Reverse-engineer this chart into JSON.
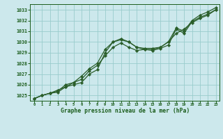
{
  "x": [
    0,
    1,
    2,
    3,
    4,
    5,
    6,
    7,
    8,
    9,
    10,
    11,
    12,
    13,
    14,
    15,
    16,
    17,
    18,
    19,
    20,
    21,
    22,
    23
  ],
  "series1": [
    1024.7,
    1025.0,
    1025.2,
    1025.4,
    1026.0,
    1026.2,
    1026.8,
    1027.5,
    1028.0,
    1029.3,
    1030.0,
    1030.3,
    1030.0,
    1029.5,
    1029.4,
    1029.4,
    1029.5,
    1030.0,
    1031.3,
    1031.0,
    1032.0,
    1032.5,
    1032.8,
    1033.2
  ],
  "series2": [
    1024.7,
    1025.0,
    1025.2,
    1025.5,
    1025.8,
    1026.2,
    1026.5,
    1027.3,
    1027.8,
    1028.7,
    1029.5,
    1029.9,
    1029.5,
    1029.2,
    1029.3,
    1029.3,
    1029.5,
    1030.0,
    1030.8,
    1031.2,
    1031.8,
    1032.2,
    1032.5,
    1033.0
  ],
  "series3": [
    1024.7,
    1025.0,
    1025.2,
    1025.3,
    1025.8,
    1026.0,
    1026.2,
    1027.0,
    1027.4,
    1029.0,
    1030.0,
    1030.2,
    1030.0,
    1029.5,
    1029.3,
    1029.2,
    1029.4,
    1029.7,
    1031.2,
    1030.8,
    1031.9,
    1032.3,
    1032.6,
    1033.0
  ],
  "bg_color": "#cce8ec",
  "grid_color": "#99cccc",
  "line_color": "#2a5e2a",
  "marker_color": "#2a5e2a",
  "xlabel": "Graphe pression niveau de la mer (hPa)",
  "xlabel_color": "#1a5c1a",
  "tick_color": "#1a5c1a",
  "ylim": [
    1024.5,
    1033.5
  ],
  "xlim": [
    -0.5,
    23.5
  ],
  "yticks": [
    1025,
    1026,
    1027,
    1028,
    1029,
    1030,
    1031,
    1032,
    1033
  ],
  "xticks": [
    0,
    1,
    2,
    3,
    4,
    5,
    6,
    7,
    8,
    9,
    10,
    11,
    12,
    13,
    14,
    15,
    16,
    17,
    18,
    19,
    20,
    21,
    22,
    23
  ]
}
